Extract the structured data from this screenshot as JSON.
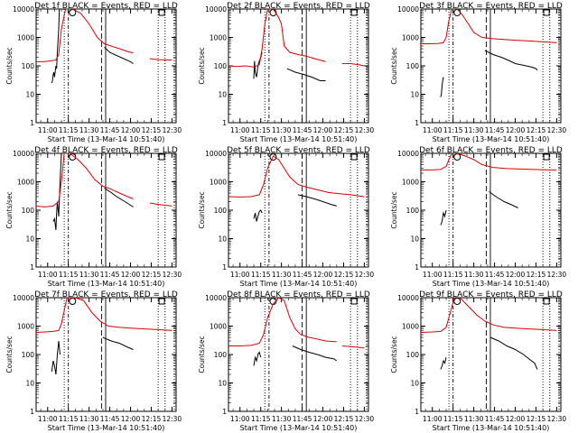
{
  "figure": {
    "time_label": "Start Time (13-Mar-14 10:51:40)",
    "ylabel": "Counts/sec",
    "xticks": [
      "11:00",
      "11:15",
      "11:30",
      "11:45",
      "12:00",
      "12:15",
      "12:30"
    ],
    "yticks": [
      "1",
      "10",
      "100",
      "1000",
      "10000"
    ],
    "colors": {
      "events": "#000000",
      "lld": "#dd0000",
      "axes": "#000000"
    }
  },
  "chart_data": [
    {
      "type": "line",
      "title": "Det 1f BLACK = Events, RED = LLD",
      "xlabel": "Start Time (13-Mar-14 10:51:40)",
      "ylabel": "Counts/sec",
      "xlim": [
        "10:51:40",
        "12:33:00"
      ],
      "ylim": [
        1,
        10000
      ],
      "yscale": "log",
      "series": [
        {
          "name": "Events",
          "x": [
            "11:03",
            "11:03:30",
            "11:04",
            "11:04:30",
            "11:05",
            "11:06",
            "11:06:30",
            "11:07",
            "11:08",
            "11:08:30",
            "11:09"
          ],
          "y": [
            25,
            30,
            50,
            60,
            40,
            100,
            80,
            300,
            2000,
            10000,
            10000
          ]
        },
        {
          "name": "Events",
          "x": [
            "11:41",
            "11:45",
            "11:50",
            "11:55",
            "12:00",
            "12:02"
          ],
          "y": [
            450,
            300,
            230,
            180,
            140,
            120
          ]
        },
        {
          "name": "LLD",
          "x": [
            "10:51",
            "10:57",
            "11:02",
            "11:06",
            "11:08",
            "11:10",
            "11:13",
            "11:18",
            "11:24",
            "11:30",
            "11:36",
            "11:41",
            "11:46",
            "11:52",
            "11:58",
            "12:02"
          ],
          "y": [
            140,
            140,
            150,
            160,
            250,
            2000,
            10000,
            10000,
            7000,
            3000,
            1000,
            600,
            500,
            400,
            320,
            280
          ]
        },
        {
          "name": "LLD",
          "x": [
            "12:14",
            "12:20",
            "12:30"
          ],
          "y": [
            180,
            165,
            160
          ]
        }
      ]
    },
    {
      "type": "line",
      "title": "Det 2f BLACK = Events, RED = LLD",
      "xlabel": "Start Time (13-Mar-14 10:51:40)",
      "ylabel": "Counts/sec",
      "xlim": [
        "10:51:40",
        "12:33:00"
      ],
      "ylim": [
        1,
        10000
      ],
      "yscale": "log",
      "series": [
        {
          "name": "Events",
          "x": [
            "11:10",
            "11:10:30",
            "11:11",
            "11:12",
            "11:13",
            "11:14",
            "11:15",
            "11:16"
          ],
          "y": [
            35,
            150,
            60,
            40,
            100,
            150,
            200,
            300
          ]
        },
        {
          "name": "Events",
          "x": [
            "11:34",
            "11:40",
            "11:46",
            "11:52",
            "11:58",
            "12:02"
          ],
          "y": [
            80,
            60,
            50,
            40,
            30,
            30
          ]
        },
        {
          "name": "LLD",
          "x": [
            "10:51",
            "10:58",
            "11:04",
            "11:10",
            "11:14",
            "11:16",
            "11:18",
            "11:20",
            "11:24",
            "11:28",
            "11:30",
            "11:32",
            "11:36",
            "11:42",
            "11:48",
            "11:54",
            "12:00",
            "12:02"
          ],
          "y": [
            100,
            95,
            100,
            90,
            110,
            400,
            3000,
            10000,
            10000,
            5000,
            3000,
            500,
            300,
            250,
            220,
            180,
            150,
            140
          ]
        },
        {
          "name": "LLD",
          "x": [
            "12:14",
            "12:20",
            "12:26",
            "12:30"
          ],
          "y": [
            120,
            120,
            110,
            100
          ]
        }
      ]
    },
    {
      "type": "line",
      "title": "Det 3f BLACK = Events, RED = LLD",
      "xlabel": "Start Time (13-Mar-14 10:51:40)",
      "ylabel": "Counts/sec",
      "xlim": [
        "10:51:40",
        "12:33:00"
      ],
      "ylim": [
        1,
        10000
      ],
      "yscale": "log",
      "series": [
        {
          "name": "Events",
          "x": [
            "11:06",
            "11:06:30",
            "11:07",
            "11:07:30",
            "11:08"
          ],
          "y": [
            8,
            10,
            20,
            30,
            40
          ]
        },
        {
          "name": "Events",
          "x": [
            "11:38",
            "11:44",
            "11:50",
            "11:56",
            "12:00",
            "12:04",
            "12:08",
            "12:12",
            "12:15",
            "12:16"
          ],
          "y": [
            350,
            250,
            200,
            150,
            120,
            110,
            100,
            90,
            80,
            70
          ]
        },
        {
          "name": "LLD",
          "x": [
            "10:51",
            "10:58",
            "11:04",
            "11:08",
            "11:10",
            "11:12",
            "11:14",
            "11:18",
            "11:22",
            "11:26",
            "11:30",
            "11:36",
            "11:44",
            "11:52",
            "12:00",
            "12:10",
            "12:20",
            "12:30"
          ],
          "y": [
            600,
            600,
            610,
            650,
            1000,
            4000,
            10000,
            10000,
            6000,
            3000,
            1500,
            1000,
            900,
            850,
            800,
            750,
            700,
            650
          ]
        }
      ]
    },
    {
      "type": "line",
      "title": "Det 4f BLACK = Events, RED = LLD",
      "xlabel": "Start Time (13-Mar-14 10:51:40)",
      "ylabel": "Counts/sec",
      "xlim": [
        "10:51:40",
        "12:33:00"
      ],
      "ylim": [
        1,
        10000
      ],
      "yscale": "log",
      "series": [
        {
          "name": "Events",
          "x": [
            "11:04",
            "11:05",
            "11:06",
            "11:06:30",
            "11:07",
            "11:08",
            "11:09",
            "11:10"
          ],
          "y": [
            40,
            50,
            20,
            80,
            200,
            60,
            1000,
            10000
          ]
        },
        {
          "name": "Events",
          "x": [
            "11:41",
            "11:45",
            "11:50",
            "11:56",
            "12:00",
            "12:02"
          ],
          "y": [
            600,
            450,
            300,
            200,
            150,
            130
          ]
        },
        {
          "name": "LLD",
          "x": [
            "10:51",
            "10:58",
            "11:04",
            "11:08",
            "11:10",
            "11:12",
            "11:16",
            "11:22",
            "11:28",
            "11:34",
            "11:40",
            "11:46",
            "11:52",
            "11:58",
            "12:02"
          ],
          "y": [
            140,
            130,
            140,
            200,
            1000,
            10000,
            10000,
            6000,
            3000,
            1200,
            700,
            550,
            400,
            300,
            250
          ]
        },
        {
          "name": "LLD",
          "x": [
            "12:14",
            "12:20",
            "12:30"
          ],
          "y": [
            180,
            160,
            140
          ]
        }
      ]
    },
    {
      "type": "line",
      "title": "Det 5f BLACK = Events, RED = LLD",
      "xlabel": "Start Time (13-Mar-14 10:51:40)",
      "ylabel": "Counts/sec",
      "xlim": [
        "10:51:40",
        "12:33:00"
      ],
      "ylim": [
        1,
        10000
      ],
      "yscale": "log",
      "series": [
        {
          "name": "Events",
          "x": [
            "11:10",
            "11:11",
            "11:12",
            "11:13",
            "11:14",
            "11:15",
            "11:16"
          ],
          "y": [
            50,
            80,
            40,
            60,
            90,
            100,
            80
          ]
        },
        {
          "name": "Events",
          "x": [
            "11:42",
            "11:48",
            "11:54",
            "12:00",
            "12:06",
            "12:10"
          ],
          "y": [
            350,
            300,
            250,
            200,
            160,
            140
          ]
        },
        {
          "name": "LLD",
          "x": [
            "10:51",
            "11:00",
            "11:08",
            "11:14",
            "11:17",
            "11:20",
            "11:24",
            "11:28",
            "11:32",
            "11:36",
            "11:42",
            "11:48",
            "11:56",
            "12:04",
            "12:12",
            "12:20",
            "12:30"
          ],
          "y": [
            300,
            290,
            300,
            350,
            800,
            3000,
            8000,
            6000,
            3000,
            1500,
            800,
            650,
            520,
            420,
            380,
            350,
            300
          ]
        }
      ]
    },
    {
      "type": "line",
      "title": "Det 6f BLACK = Events, RED = LLD",
      "xlabel": "Start Time (13-Mar-14 10:51:40)",
      "ylabel": "Counts/sec",
      "xlim": [
        "10:51:40",
        "12:33:00"
      ],
      "ylim": [
        1,
        10000
      ],
      "yscale": "log",
      "series": [
        {
          "name": "Events",
          "x": [
            "11:06",
            "11:07",
            "11:08",
            "11:09",
            "11:10"
          ],
          "y": [
            30,
            40,
            80,
            60,
            100
          ]
        },
        {
          "name": "Events",
          "x": [
            "11:41",
            "11:46",
            "11:52",
            "11:58",
            "12:02"
          ],
          "y": [
            450,
            300,
            200,
            150,
            120
          ]
        },
        {
          "name": "LLD",
          "x": [
            "10:51",
            "11:00",
            "11:06",
            "11:10",
            "11:12",
            "11:14",
            "11:18",
            "11:24",
            "11:30",
            "11:36",
            "11:44",
            "11:54",
            "12:04",
            "12:14",
            "12:22",
            "12:30"
          ],
          "y": [
            2600,
            2600,
            2700,
            3500,
            6000,
            10000,
            10000,
            8000,
            6000,
            4000,
            3200,
            2900,
            2800,
            2700,
            2650,
            2600
          ]
        }
      ]
    },
    {
      "type": "line",
      "title": "Det 7f BLACK = Events, RED = LLD",
      "xlabel": "Start Time (13-Mar-14 10:51:40)",
      "ylabel": "Counts/sec",
      "xlim": [
        "10:51:40",
        "12:33:00"
      ],
      "ylim": [
        1,
        10000
      ],
      "yscale": "log",
      "series": [
        {
          "name": "Events",
          "x": [
            "11:03",
            "11:04",
            "11:05",
            "11:06",
            "11:07",
            "11:08",
            "11:09"
          ],
          "y": [
            25,
            60,
            40,
            20,
            100,
            300,
            100
          ]
        },
        {
          "name": "Events",
          "x": [
            "11:40",
            "11:46",
            "11:52",
            "11:58",
            "12:02"
          ],
          "y": [
            400,
            300,
            250,
            180,
            150
          ]
        },
        {
          "name": "LLD",
          "x": [
            "10:51",
            "10:58",
            "11:04",
            "11:08",
            "11:10",
            "11:14",
            "11:20",
            "11:26",
            "11:32",
            "11:38",
            "11:44",
            "11:52",
            "12:00",
            "12:10",
            "12:20",
            "12:30"
          ],
          "y": [
            600,
            620,
            650,
            700,
            1200,
            10000,
            10000,
            8000,
            3000,
            1500,
            1000,
            900,
            850,
            800,
            750,
            700
          ]
        }
      ]
    },
    {
      "type": "line",
      "title": "Det 8f BLACK = Events, RED = LLD",
      "xlabel": "Start Time (13-Mar-14 10:51:40)",
      "ylabel": "Counts/sec",
      "xlim": [
        "10:51:40",
        "12:33:00"
      ],
      "ylim": [
        1,
        10000
      ],
      "yscale": "log",
      "series": [
        {
          "name": "Events",
          "x": [
            "11:10",
            "11:11",
            "11:12",
            "11:13",
            "11:14",
            "11:15"
          ],
          "y": [
            40,
            80,
            60,
            100,
            120,
            80
          ]
        },
        {
          "name": "Events",
          "x": [
            "11:38",
            "11:44",
            "11:50",
            "11:56",
            "12:02",
            "12:08",
            "12:10"
          ],
          "y": [
            200,
            150,
            120,
            100,
            80,
            70,
            60
          ]
        },
        {
          "name": "LLD",
          "x": [
            "10:51",
            "11:00",
            "11:08",
            "11:14",
            "11:17",
            "11:20",
            "11:24",
            "11:28",
            "11:32",
            "11:36",
            "11:40",
            "11:44",
            "11:50",
            "11:56",
            "12:02",
            "12:10"
          ],
          "y": [
            200,
            200,
            210,
            250,
            500,
            2000,
            6000,
            10000,
            8000,
            2000,
            800,
            500,
            400,
            350,
            300,
            280
          ]
        },
        {
          "name": "LLD",
          "x": [
            "12:14",
            "12:20",
            "12:26",
            "12:30"
          ],
          "y": [
            200,
            190,
            180,
            170
          ]
        }
      ]
    },
    {
      "type": "line",
      "title": "Det 9f BLACK = Events, RED = LLD",
      "xlabel": "Start Time (13-Mar-14 10:51:40)",
      "ylabel": "Counts/sec",
      "xlim": [
        "10:51:40",
        "12:33:00"
      ],
      "ylim": [
        1,
        10000
      ],
      "yscale": "log",
      "series": [
        {
          "name": "Events",
          "x": [
            "11:06",
            "11:07",
            "11:08",
            "11:09",
            "11:10"
          ],
          "y": [
            30,
            40,
            60,
            50,
            80
          ]
        },
        {
          "name": "Events",
          "x": [
            "11:42",
            "11:48",
            "11:54",
            "12:00",
            "12:06",
            "12:10",
            "12:14",
            "12:16"
          ],
          "y": [
            400,
            300,
            200,
            150,
            100,
            70,
            50,
            30
          ]
        },
        {
          "name": "LLD",
          "x": [
            "10:51",
            "11:00",
            "11:06",
            "11:10",
            "11:13",
            "11:16",
            "11:20",
            "11:26",
            "11:32",
            "11:38",
            "11:44",
            "11:52",
            "12:00",
            "12:10",
            "12:20",
            "12:30"
          ],
          "y": [
            600,
            620,
            650,
            900,
            3000,
            10000,
            10000,
            5000,
            2500,
            1500,
            1100,
            900,
            850,
            800,
            750,
            700
          ]
        }
      ]
    }
  ]
}
